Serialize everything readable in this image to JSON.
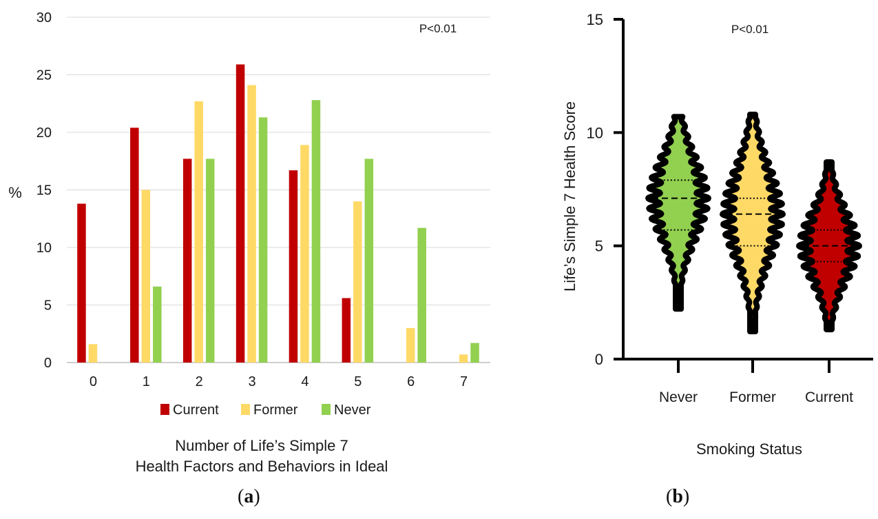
{
  "chart_data": [
    {
      "type": "bar",
      "panel": "a",
      "ylabel": "%",
      "xlabel": "Number of Life’s Simple 7 Health Factors and Behaviors in Ideal",
      "xlabel_lines": [
        "Number of Life’s Simple 7",
        "Health Factors and Behaviors in Ideal"
      ],
      "categories": [
        "0",
        "1",
        "2",
        "3",
        "4",
        "5",
        "6",
        "7"
      ],
      "ylim": [
        0,
        30
      ],
      "yticks": [
        0,
        5,
        10,
        15,
        20,
        25,
        30
      ],
      "grid": true,
      "legend_position": "bottom",
      "annotation": "P<0.01",
      "series": [
        {
          "name": "Current",
          "color": "#c00000",
          "values": [
            13.8,
            20.4,
            17.7,
            25.9,
            16.7,
            5.6,
            0,
            0
          ]
        },
        {
          "name": "Former",
          "color": "#ffd966",
          "values": [
            1.6,
            15.0,
            22.7,
            24.1,
            18.9,
            14.0,
            3.0,
            0.7
          ]
        },
        {
          "name": "Never",
          "color": "#92d050",
          "values": [
            0,
            6.6,
            17.7,
            21.3,
            22.8,
            17.7,
            11.7,
            1.7
          ]
        }
      ]
    },
    {
      "type": "violin",
      "panel": "b",
      "ylabel": "Life’s Simple 7 Health Score",
      "xlabel": "Smoking Status",
      "categories": [
        "Never",
        "Former",
        "Current"
      ],
      "ylim": [
        0,
        15
      ],
      "yticks": [
        0,
        5,
        10,
        15
      ],
      "annotation": "P<0.01",
      "series": [
        {
          "name": "Never",
          "color": "#92d050",
          "min": 2.2,
          "max": 10.7,
          "median": 7.1,
          "q1": 5.7,
          "q3": 7.9
        },
        {
          "name": "Former",
          "color": "#ffd966",
          "min": 1.2,
          "max": 10.8,
          "median": 6.4,
          "q1": 5.0,
          "q3": 7.1
        },
        {
          "name": "Current",
          "color": "#c00000",
          "min": 1.3,
          "max": 8.7,
          "median": 5.0,
          "q1": 4.3,
          "q3": 5.7
        }
      ]
    }
  ],
  "captions": {
    "a": "a",
    "b": "b"
  }
}
